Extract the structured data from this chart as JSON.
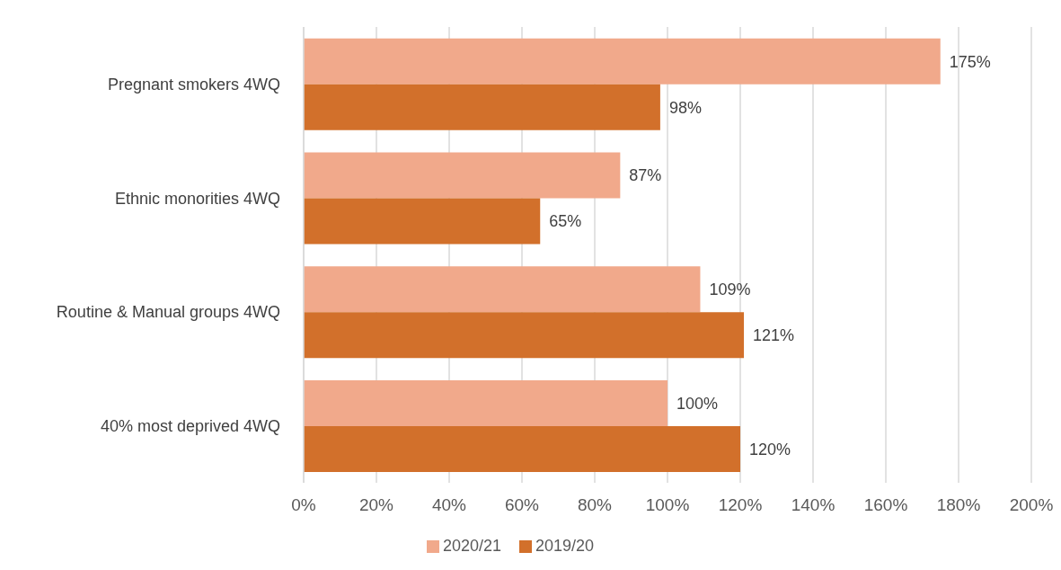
{
  "chart_data": {
    "type": "bar",
    "orientation": "horizontal",
    "categories": [
      "Pregnant smokers 4WQ",
      "Ethnic monorities 4WQ",
      "Routine & Manual groups 4WQ",
      "40% most deprived 4WQ"
    ],
    "series": [
      {
        "name": "2020/21",
        "color": "#f1a98b",
        "values": [
          175,
          87,
          109,
          100
        ],
        "value_labels": [
          "175%",
          "87%",
          "109%",
          "100%"
        ]
      },
      {
        "name": "2019/20",
        "color": "#d2702b",
        "values": [
          98,
          65,
          121,
          120
        ],
        "value_labels": [
          "98%",
          "65%",
          "121%",
          "120%"
        ]
      }
    ],
    "xlim": [
      0,
      200
    ],
    "xticks": [
      {
        "value": 0,
        "label": "0%"
      },
      {
        "value": 20,
        "label": "20%"
      },
      {
        "value": 40,
        "label": "40%"
      },
      {
        "value": 60,
        "label": "60%"
      },
      {
        "value": 80,
        "label": "80%"
      },
      {
        "value": 100,
        "label": "100%"
      },
      {
        "value": 120,
        "label": "120%"
      },
      {
        "value": 140,
        "label": "140%"
      },
      {
        "value": 160,
        "label": "160%"
      },
      {
        "value": 180,
        "label": "180%"
      },
      {
        "value": 200,
        "label": "200%"
      }
    ],
    "grid": "x",
    "legend": "bottom"
  }
}
